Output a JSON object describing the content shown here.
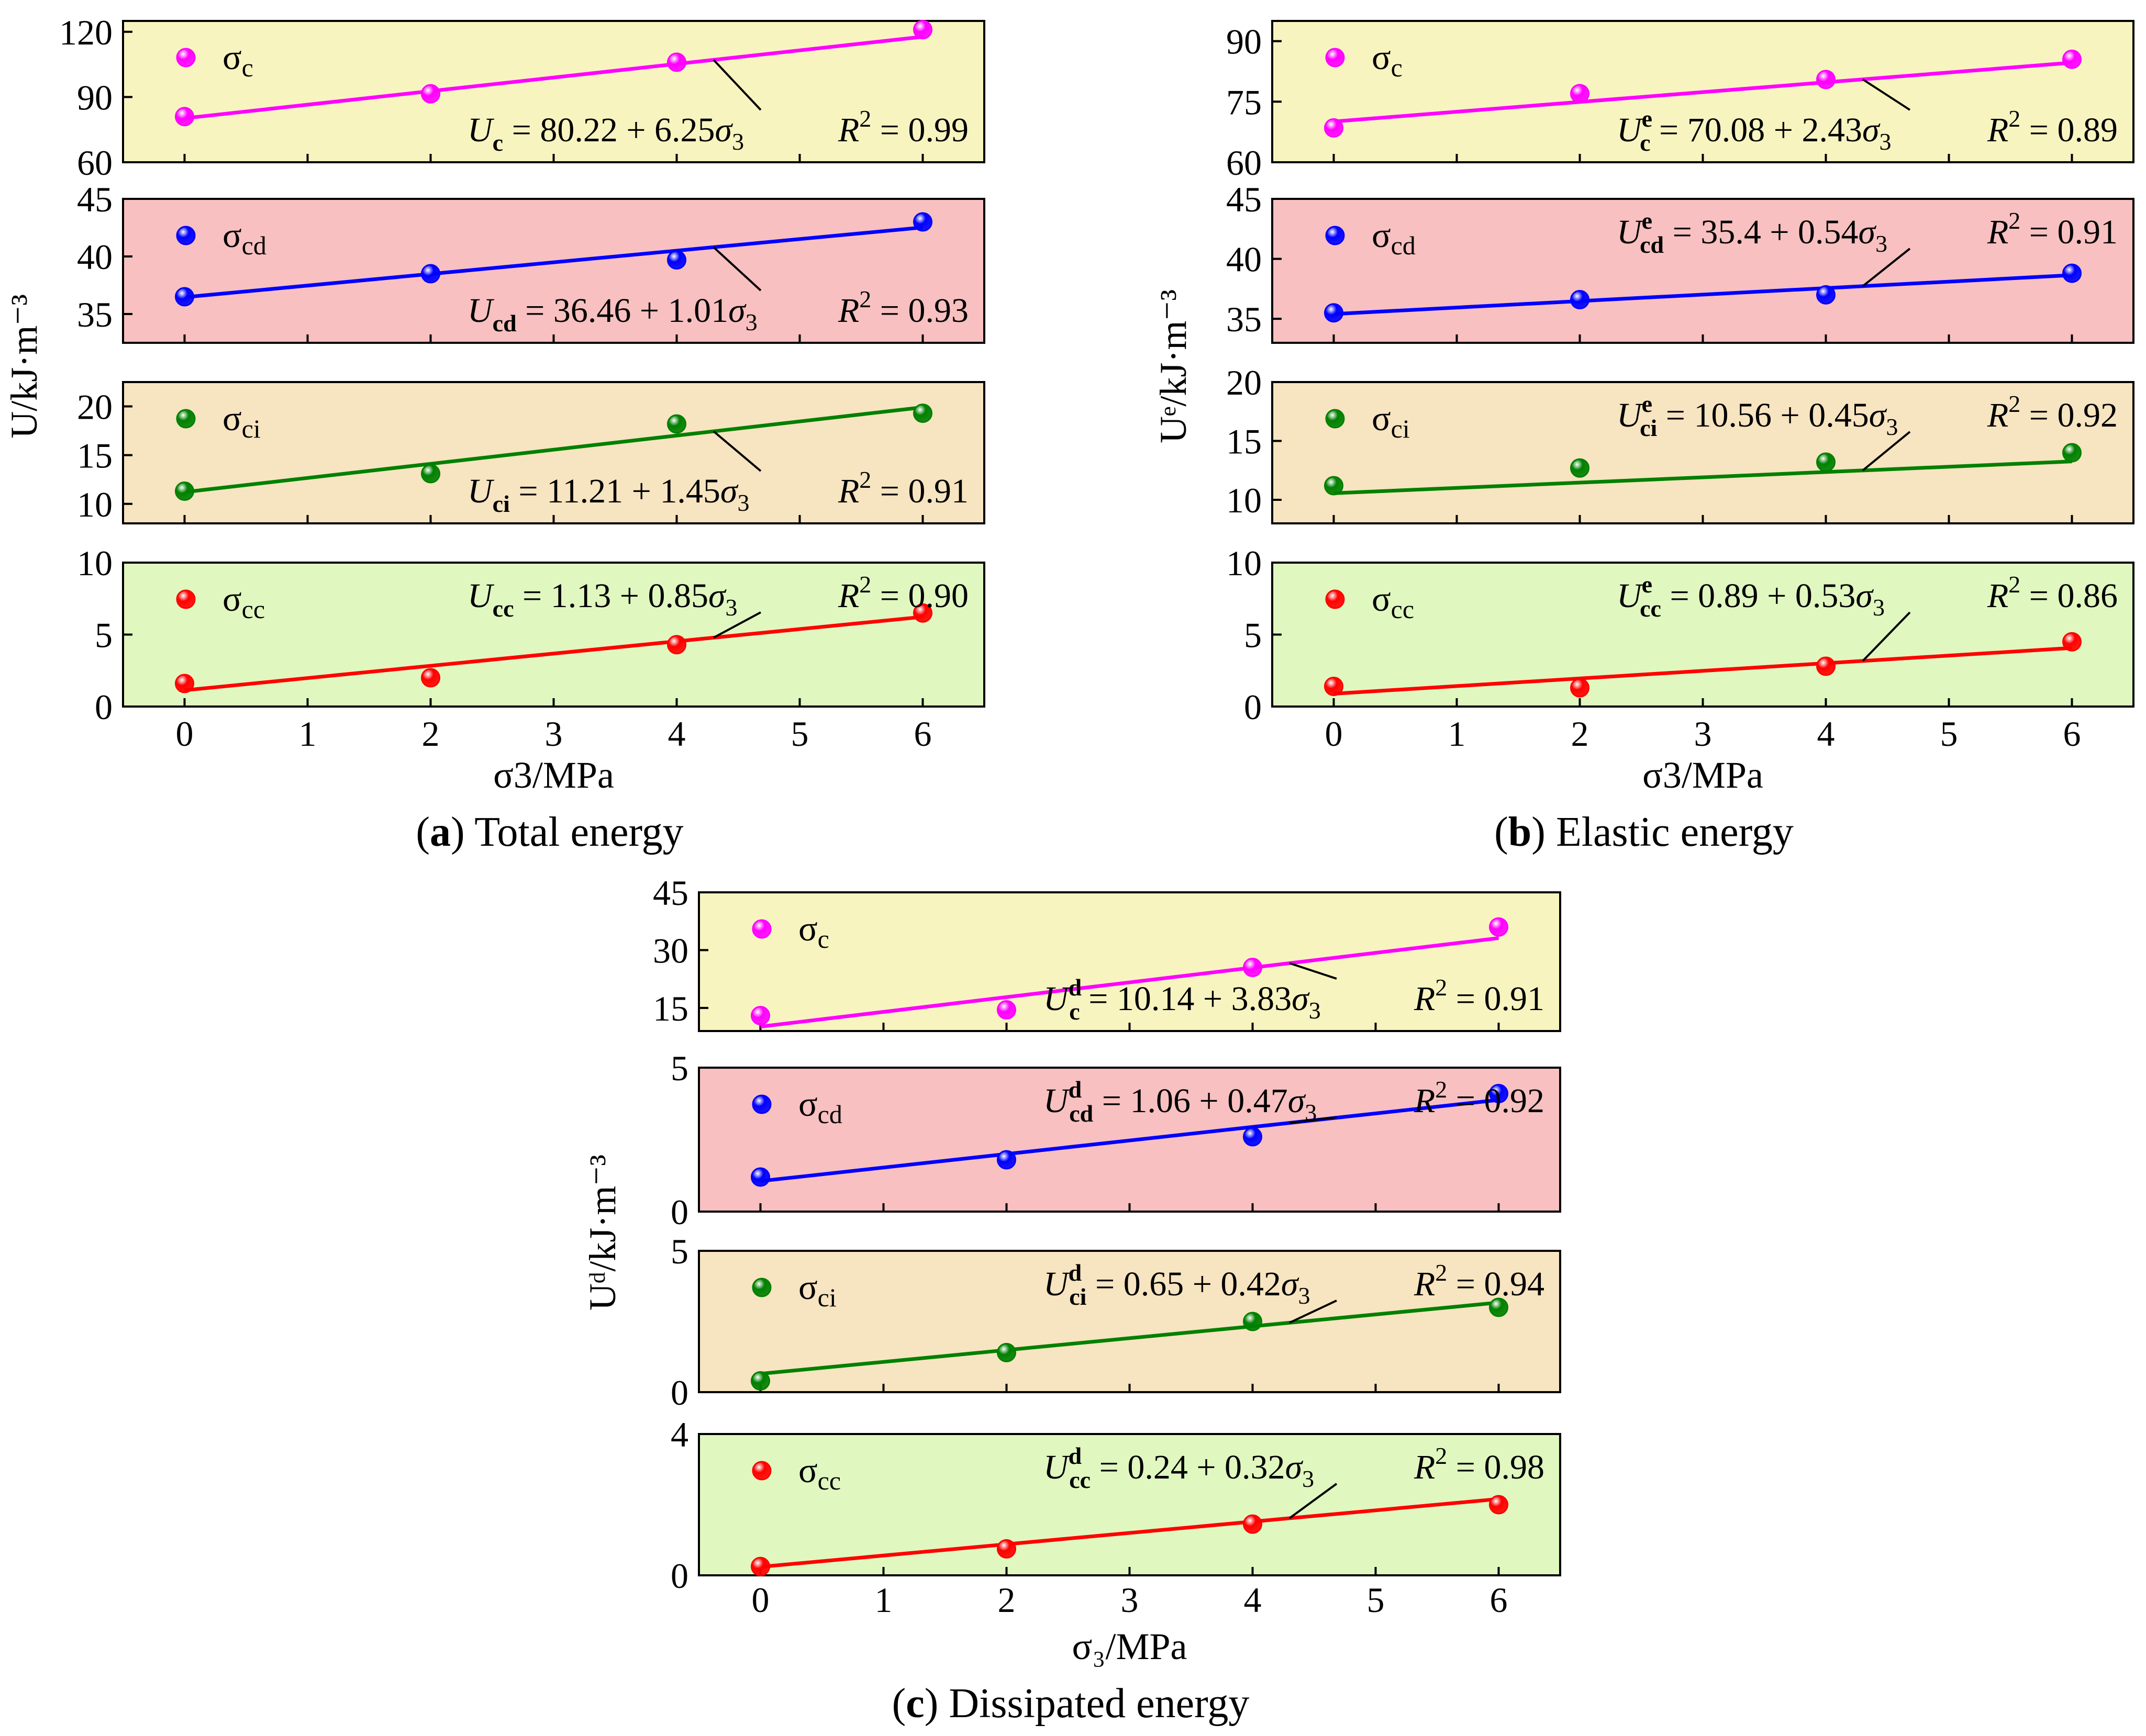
{
  "figure": {
    "panels": [
      {
        "id": "a",
        "caption_letter": "a",
        "caption_text": "Total energy",
        "ylabel": "U/kJ·m⁻³",
        "xlabel": "σ3/MPa",
        "x_ticks": [
          "0",
          "1",
          "2",
          "3",
          "4",
          "5",
          "6"
        ],
        "subplots": [
          {
            "name": "sigma-c",
            "legend": "σc",
            "legend_sub": "c",
            "color": "#ff00ff",
            "bg": "#f8f4c0",
            "ylim": [
              60,
              125
            ],
            "yticks": [
              60,
              90,
              120
            ],
            "x": [
              0,
              2,
              4,
              6
            ],
            "y": [
              81,
              91.5,
              106,
              121
            ],
            "fit": {
              "a": 80.22,
              "b": 6.25
            },
            "eq_sub": "c",
            "eq_sup": "",
            "eq_a": "80.22",
            "eq_b": "6.25",
            "r2": "0.99"
          },
          {
            "name": "sigma-cd",
            "legend": "σcd",
            "legend_sub": "cd",
            "color": "#0000ff",
            "bg": "#f8c0c0",
            "ylim": [
              32.5,
              45
            ],
            "yticks": [
              35,
              40,
              45
            ],
            "x": [
              0,
              2,
              4,
              6
            ],
            "y": [
              36.5,
              38.5,
              39.7,
              43
            ],
            "fit": {
              "a": 36.46,
              "b": 1.01
            },
            "eq_sub": "cd",
            "eq_sup": "",
            "eq_a": "36.46",
            "eq_b": "1.01",
            "r2": "0.93"
          },
          {
            "name": "sigma-ci",
            "legend": "σci",
            "legend_sub": "ci",
            "color": "#008000",
            "bg": "#f7e4c0",
            "ylim": [
              8,
              22.5
            ],
            "yticks": [
              10,
              15,
              20
            ],
            "x": [
              0,
              2,
              4,
              6
            ],
            "y": [
              11.3,
              13.1,
              18.2,
              19.3
            ],
            "fit": {
              "a": 11.21,
              "b": 1.45
            },
            "eq_sub": "ci",
            "eq_sup": "",
            "eq_a": "11.21",
            "eq_b": "1.45",
            "r2": "0.91"
          },
          {
            "name": "sigma-cc",
            "legend": "σcc",
            "legend_sub": "cc",
            "color": "#ff0000",
            "bg": "#e0f7c0",
            "ylim": [
              0,
              10
            ],
            "yticks": [
              0,
              5,
              10
            ],
            "x": [
              0,
              2,
              4,
              6
            ],
            "y": [
              1.6,
              2.0,
              4.3,
              6.5
            ],
            "fit": {
              "a": 1.13,
              "b": 0.85
            },
            "eq_sub": "cc",
            "eq_sup": "",
            "eq_a": "1.13",
            "eq_b": "0.85",
            "r2": "0.90"
          }
        ]
      },
      {
        "id": "b",
        "caption_letter": "b",
        "caption_text": "Elastic energy",
        "ylabel": "Uᵉ/kJ·m⁻³",
        "xlabel": "σ3/MPa",
        "x_ticks": [
          "0",
          "1",
          "2",
          "3",
          "4",
          "5",
          "6"
        ],
        "subplots": [
          {
            "name": "sigma-c",
            "legend": "σc",
            "legend_sub": "c",
            "color": "#ff00ff",
            "bg": "#f8f4c0",
            "ylim": [
              60,
              95
            ],
            "yticks": [
              60,
              75,
              90
            ],
            "x": [
              0,
              2,
              4,
              6
            ],
            "y": [
              68.5,
              77,
              80.5,
              85.5
            ],
            "fit": {
              "a": 70.08,
              "b": 2.43
            },
            "eq_sub": "c",
            "eq_sup": "e",
            "eq_a": "70.08",
            "eq_b": "2.43",
            "r2": "0.89"
          },
          {
            "name": "sigma-cd",
            "legend": "σcd",
            "legend_sub": "cd",
            "color": "#0000ff",
            "bg": "#f8c0c0",
            "ylim": [
              33,
              45
            ],
            "yticks": [
              35,
              40,
              45
            ],
            "x": [
              0,
              2,
              4,
              6
            ],
            "y": [
              35.5,
              36.6,
              37,
              38.8
            ],
            "fit": {
              "a": 35.4,
              "b": 0.54
            },
            "eq_sub": "cd",
            "eq_sup": "e",
            "eq_a": "35.4",
            "eq_b": "0.54",
            "r2": "0.91"
          },
          {
            "name": "sigma-ci",
            "legend": "σci",
            "legend_sub": "ci",
            "color": "#008000",
            "bg": "#f7e4c0",
            "ylim": [
              8,
              20
            ],
            "yticks": [
              10,
              15,
              20
            ],
            "x": [
              0,
              2,
              4,
              6
            ],
            "y": [
              11.2,
              12.7,
              13.2,
              14
            ],
            "fit": {
              "a": 10.56,
              "b": 0.45
            },
            "eq_sub": "ci",
            "eq_sup": "e",
            "eq_a": "10.56",
            "eq_b": "0.45",
            "r2": "0.92"
          },
          {
            "name": "sigma-cc",
            "legend": "σcc",
            "legend_sub": "cc",
            "color": "#ff0000",
            "bg": "#e0f7c0",
            "ylim": [
              0,
              10
            ],
            "yticks": [
              0,
              5,
              10
            ],
            "x": [
              0,
              2,
              4,
              6
            ],
            "y": [
              1.4,
              1.3,
              2.8,
              4.5
            ],
            "fit": {
              "a": 0.89,
              "b": 0.53
            },
            "eq_sub": "cc",
            "eq_sup": "e",
            "eq_a": "0.89",
            "eq_b": "0.53",
            "r2": "0.86"
          }
        ]
      },
      {
        "id": "c",
        "caption_letter": "c",
        "caption_text": "Dissipated energy",
        "ylabel": "Uᵈ/kJ·m⁻³",
        "xlabel": "σ₃/MPa",
        "x_ticks": [
          "0",
          "1",
          "2",
          "3",
          "4",
          "5",
          "6"
        ],
        "subplots": [
          {
            "name": "sigma-c",
            "legend": "σc",
            "legend_sub": "c",
            "color": "#ff00ff",
            "bg": "#f8f4c0",
            "ylim": [
              9,
              45
            ],
            "yticks": [
              15,
              30,
              45
            ],
            "x": [
              0,
              2,
              4,
              6
            ],
            "y": [
              13,
              14.5,
              25.5,
              36
            ],
            "fit": {
              "a": 10.14,
              "b": 3.83
            },
            "eq_sub": "c",
            "eq_sup": "d",
            "eq_a": "10.14",
            "eq_b": "3.83",
            "r2": "0.91"
          },
          {
            "name": "sigma-cd",
            "legend": "σcd",
            "legend_sub": "cd",
            "color": "#0000ff",
            "bg": "#f8c0c0",
            "ylim": [
              0,
              5
            ],
            "yticks": [
              0,
              5
            ],
            "x": [
              0,
              2,
              4,
              6
            ],
            "y": [
              1.2,
              1.8,
              2.6,
              4.1
            ],
            "fit": {
              "a": 1.06,
              "b": 0.47
            },
            "eq_sub": "cd",
            "eq_sup": "d",
            "eq_a": "1.06",
            "eq_b": "0.47",
            "r2": "0.92"
          },
          {
            "name": "sigma-ci",
            "legend": "σci",
            "legend_sub": "ci",
            "color": "#008000",
            "bg": "#f7e4c0",
            "ylim": [
              0,
              5
            ],
            "yticks": [
              0,
              5
            ],
            "x": [
              0,
              2,
              4,
              6
            ],
            "y": [
              0.4,
              1.4,
              2.5,
              3.0
            ],
            "fit": {
              "a": 0.65,
              "b": 0.42
            },
            "eq_sub": "ci",
            "eq_sup": "d",
            "eq_a": "0.65",
            "eq_b": "0.42",
            "r2": "0.94"
          },
          {
            "name": "sigma-cc",
            "legend": "σcc",
            "legend_sub": "cc",
            "color": "#ff0000",
            "bg": "#e0f7c0",
            "ylim": [
              0,
              4
            ],
            "yticks": [
              0,
              4
            ],
            "x": [
              0,
              2,
              4,
              6
            ],
            "y": [
              0.25,
              0.75,
              1.45,
              2.0
            ],
            "fit": {
              "a": 0.24,
              "b": 0.32
            },
            "eq_sub": "cc",
            "eq_sup": "d",
            "eq_a": "0.24",
            "eq_b": "0.32",
            "r2": "0.98"
          }
        ]
      }
    ]
  },
  "chart_data": [
    {
      "type": "scatter",
      "title": "(a) Total energy",
      "xlabel": "σ3/MPa",
      "ylabel": "U/kJ·m⁻³",
      "xlim": [
        -0.5,
        6.5
      ],
      "series": [
        {
          "name": "σc",
          "x": [
            0,
            2,
            4,
            6
          ],
          "y": [
            81,
            91.5,
            106,
            121
          ],
          "fit": "Uc = 80.22 + 6.25σ3, R² = 0.99"
        },
        {
          "name": "σcd",
          "x": [
            0,
            2,
            4,
            6
          ],
          "y": [
            36.5,
            38.5,
            39.7,
            43
          ],
          "fit": "Ucd = 36.46 + 1.01σ3, R² = 0.93"
        },
        {
          "name": "σci",
          "x": [
            0,
            2,
            4,
            6
          ],
          "y": [
            11.3,
            13.1,
            18.2,
            19.3
          ],
          "fit": "Uci = 11.21 + 1.45σ3, R² = 0.91"
        },
        {
          "name": "σcc",
          "x": [
            0,
            2,
            4,
            6
          ],
          "y": [
            1.6,
            2.0,
            4.3,
            6.5
          ],
          "fit": "Ucc = 1.13 + 0.85σ3, R² = 0.90"
        }
      ]
    },
    {
      "type": "scatter",
      "title": "(b) Elastic energy",
      "xlabel": "σ3/MPa",
      "ylabel": "Uᵉ/kJ·m⁻³",
      "xlim": [
        -0.5,
        6.5
      ],
      "series": [
        {
          "name": "σc",
          "x": [
            0,
            2,
            4,
            6
          ],
          "y": [
            68.5,
            77,
            80.5,
            85.5
          ],
          "fit": "Uc^e = 70.08 + 2.43σ3, R² = 0.89"
        },
        {
          "name": "σcd",
          "x": [
            0,
            2,
            4,
            6
          ],
          "y": [
            35.5,
            36.6,
            37,
            38.8
          ],
          "fit": "Ucd^e = 35.4 + 0.54σ3, R² = 0.91"
        },
        {
          "name": "σci",
          "x": [
            0,
            2,
            4,
            6
          ],
          "y": [
            11.2,
            12.7,
            13.2,
            14
          ],
          "fit": "Uci^e = 10.56 + 0.45σ3, R² = 0.92"
        },
        {
          "name": "σcc",
          "x": [
            0,
            2,
            4,
            6
          ],
          "y": [
            1.4,
            1.3,
            2.8,
            4.5
          ],
          "fit": "Ucc^e = 0.89 + 0.53σ3, R² = 0.86"
        }
      ]
    },
    {
      "type": "scatter",
      "title": "(c) Dissipated energy",
      "xlabel": "σ₃/MPa",
      "ylabel": "Uᵈ/kJ·m⁻³",
      "xlim": [
        -0.5,
        6.5
      ],
      "series": [
        {
          "name": "σc",
          "x": [
            0,
            2,
            4,
            6
          ],
          "y": [
            13,
            14.5,
            25.5,
            36
          ],
          "fit": "Uc^d = 10.14 + 3.83σ3, R² = 0.91"
        },
        {
          "name": "σcd",
          "x": [
            0,
            2,
            4,
            6
          ],
          "y": [
            1.2,
            1.8,
            2.6,
            4.1
          ],
          "fit": "Ucd^d = 1.06 + 0.47σ3, R² = 0.92"
        },
        {
          "name": "σci",
          "x": [
            0,
            2,
            4,
            6
          ],
          "y": [
            0.4,
            1.4,
            2.5,
            3.0
          ],
          "fit": "Uci^d = 0.65 + 0.42σ3, R² = 0.94"
        },
        {
          "name": "σcc",
          "x": [
            0,
            2,
            4,
            6
          ],
          "y": [
            0.25,
            0.75,
            1.45,
            2.0
          ],
          "fit": "Ucc^d = 0.24 + 0.32σ3, R² = 0.98"
        }
      ]
    }
  ]
}
